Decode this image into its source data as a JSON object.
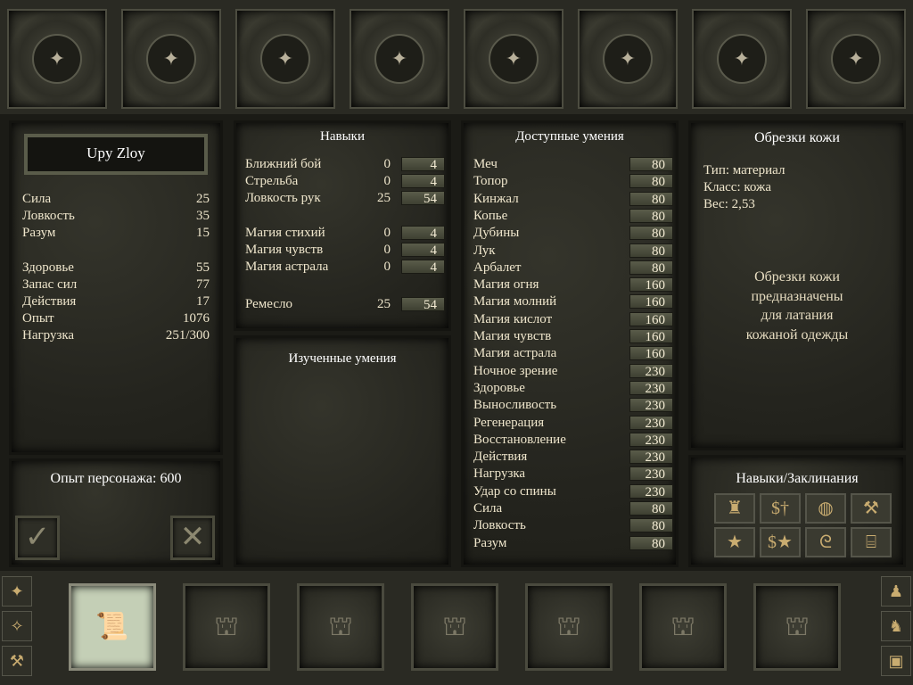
{
  "character": {
    "name": "Upy Zloy",
    "stats": [
      {
        "label": "Сила",
        "value": "25"
      },
      {
        "label": "Ловкость",
        "value": "35"
      },
      {
        "label": "Разум",
        "value": "15"
      }
    ],
    "vitals": [
      {
        "label": "Здоровье",
        "value": "55"
      },
      {
        "label": "Запас сил",
        "value": "77"
      },
      {
        "label": "Действия",
        "value": "17"
      },
      {
        "label": "Опыт",
        "value": "1076"
      },
      {
        "label": "Нагрузка",
        "value": "251/300"
      }
    ],
    "experience_label": "Опыт персонажа: 600"
  },
  "skills": {
    "title": "Навыки",
    "combat": [
      {
        "label": "Ближний бой",
        "base": "0",
        "value": "4"
      },
      {
        "label": "Стрельба",
        "base": "0",
        "value": "4"
      },
      {
        "label": "Ловкость рук",
        "base": "25",
        "value": "54"
      }
    ],
    "magic": [
      {
        "label": "Магия стихий",
        "base": "0",
        "value": "4"
      },
      {
        "label": "Магия чувств",
        "base": "0",
        "value": "4"
      },
      {
        "label": "Магия астрала",
        "base": "0",
        "value": "4"
      }
    ],
    "craft": {
      "label": "Ремесло",
      "base": "25",
      "value": "54"
    }
  },
  "learned": {
    "title": "Изученные умения"
  },
  "available": {
    "title": "Доступные умения",
    "items": [
      {
        "label": "Меч",
        "cost": "80"
      },
      {
        "label": "Топор",
        "cost": "80"
      },
      {
        "label": "Кинжал",
        "cost": "80"
      },
      {
        "label": "Копье",
        "cost": "80"
      },
      {
        "label": "Дубины",
        "cost": "80"
      },
      {
        "label": "Лук",
        "cost": "80"
      },
      {
        "label": "Арбалет",
        "cost": "80"
      },
      {
        "label": "Магия огня",
        "cost": "160"
      },
      {
        "label": "Магия молний",
        "cost": "160"
      },
      {
        "label": "Магия кислот",
        "cost": "160"
      },
      {
        "label": "Магия чувств",
        "cost": "160"
      },
      {
        "label": "Магия астрала",
        "cost": "160"
      },
      {
        "label": "Ночное зрение",
        "cost": "230"
      },
      {
        "label": "Здоровье",
        "cost": "230"
      },
      {
        "label": "Выносливость",
        "cost": "230"
      },
      {
        "label": "Регенерация",
        "cost": "230"
      },
      {
        "label": "Восстановление",
        "cost": "230"
      },
      {
        "label": "Действия",
        "cost": "230"
      },
      {
        "label": "Нагрузка",
        "cost": "230"
      },
      {
        "label": "Удар со спины",
        "cost": "230"
      },
      {
        "label": "Сила",
        "cost": "80"
      },
      {
        "label": "Ловкость",
        "cost": "80"
      },
      {
        "label": "Разум",
        "cost": "80"
      }
    ]
  },
  "item": {
    "title": "Обрезки кожи",
    "type": "Тип: материал",
    "class": "Класс: кожа",
    "weight": "Вес: 2,53",
    "description": [
      "Обрезки кожи",
      "предназначены",
      "для латания",
      "кожаной одежды"
    ]
  },
  "tabs": {
    "title": "Навыки/Заклинания",
    "icons": [
      "armor-icon",
      "trade-weapon-icon",
      "shield-tools-icon",
      "hammer-icon",
      "stars-icon",
      "trade-magic-icon",
      "scroll-icon",
      "anvil-icon"
    ],
    "glyphs": [
      "♜",
      "$†",
      "◍",
      "⚒",
      "★",
      "$★",
      "ᘓ",
      "⌸"
    ]
  },
  "buttons": {
    "accept": "✓",
    "cancel": "✕"
  },
  "hotbar": {
    "selected_item": "leather-scraps"
  }
}
